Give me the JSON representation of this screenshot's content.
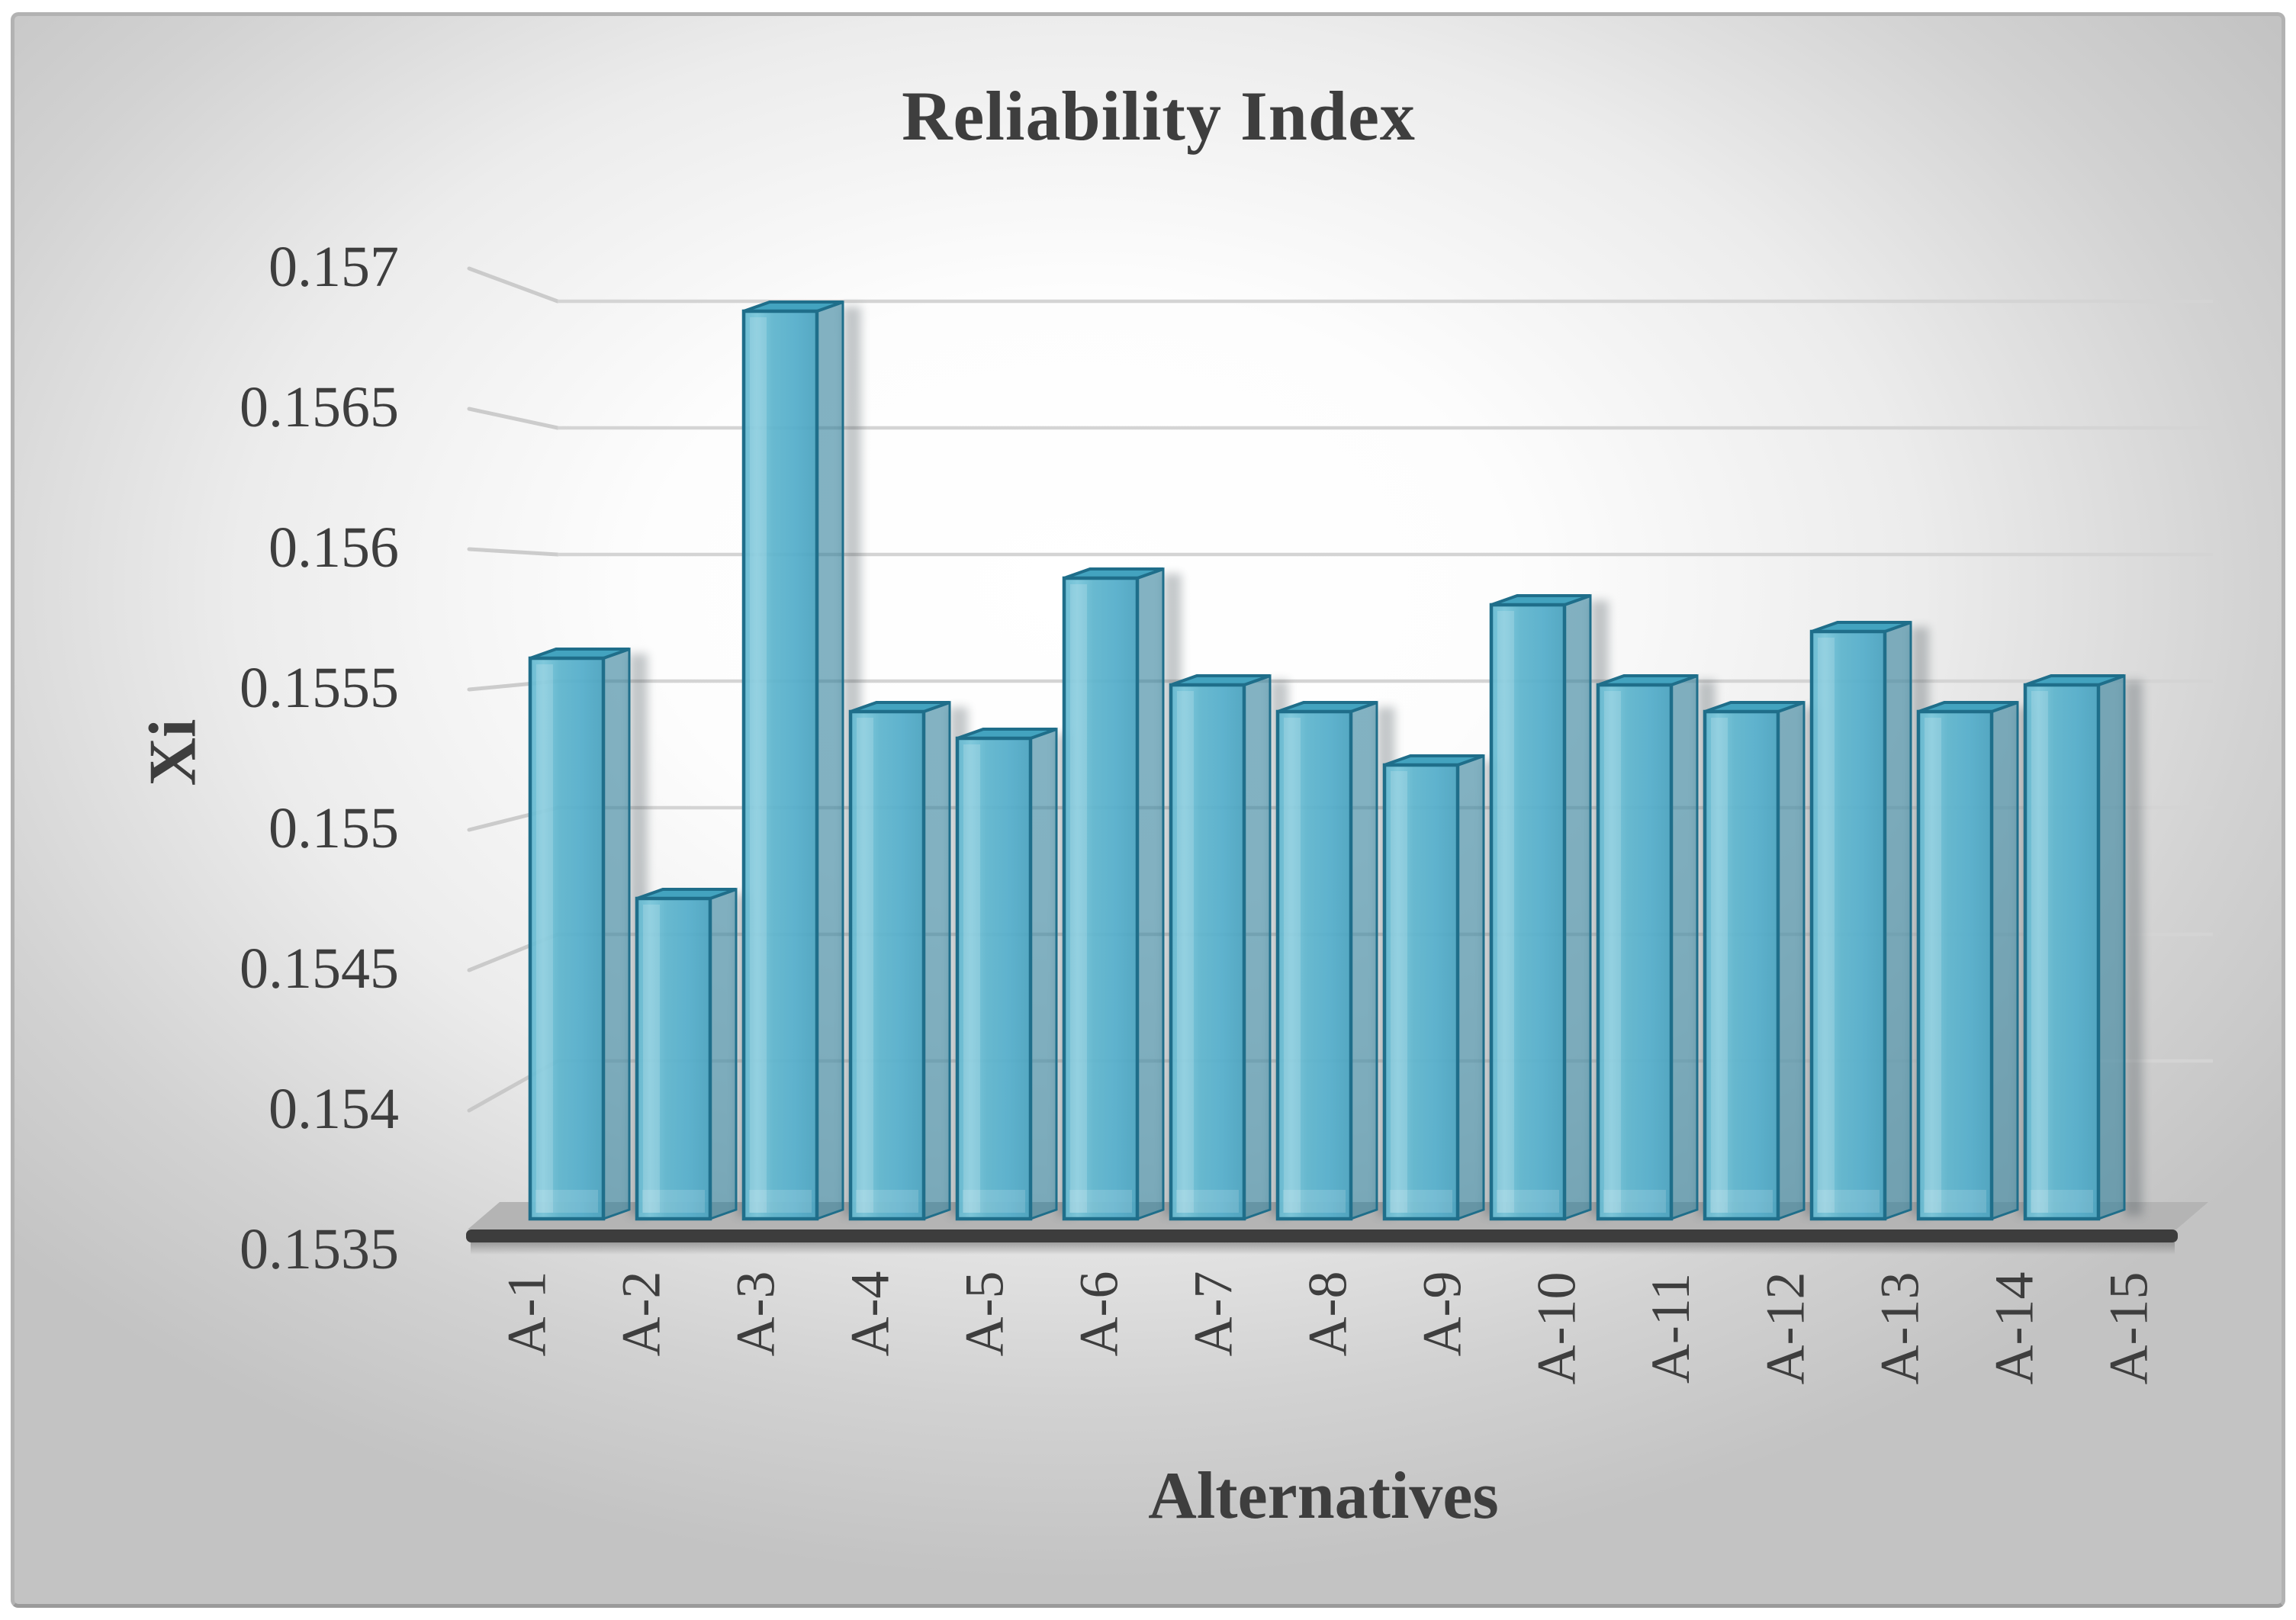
{
  "figure": {
    "frame_border_color": "#B2B2B2",
    "background_center": "#FFFFFF",
    "background_edge": "#C3C3C3"
  },
  "chart_data": {
    "type": "bar",
    "style": "3d-column",
    "title": "Reliability Index",
    "xlabel": "Alternatives",
    "ylabel": "Xi",
    "categories": [
      "A-1",
      "A-2",
      "A-3",
      "A-4",
      "A-5",
      "A-6",
      "A-7",
      "A-8",
      "A-9",
      "A-10",
      "A-11",
      "A-12",
      "A-13",
      "A-14",
      "A-15"
    ],
    "values": [
      0.1556,
      0.1547,
      0.1569,
      0.1554,
      0.1553,
      0.1559,
      0.1555,
      0.1554,
      0.1552,
      0.1558,
      0.1555,
      0.1554,
      0.1557,
      0.1554,
      0.1555
    ],
    "ylim": [
      0.1535,
      0.157
    ],
    "ytick_step": 0.0005,
    "ytick_labels": [
      "0.157",
      "0.1565",
      "0.156",
      "0.1555",
      "0.155",
      "0.1545",
      "0.154",
      "0.1535"
    ],
    "ytick_values": [
      0.157,
      0.1565,
      0.156,
      0.1555,
      0.155,
      0.1545,
      0.154,
      0.1535
    ],
    "grid": true,
    "legend": false,
    "colors": {
      "bar_front": "#55AECB",
      "bar_front_highlight": "#79C6DA",
      "bar_side": "#37839D",
      "bar_top": "#43A3BF",
      "bar_edge": "#1F6E8A",
      "gridline": "#D4D4D4",
      "gridline_bend": "#C2C2C2",
      "floor_top": "#B4B4B4",
      "floor_front": "#3D3D3D",
      "text": "#3E3E3E"
    }
  }
}
